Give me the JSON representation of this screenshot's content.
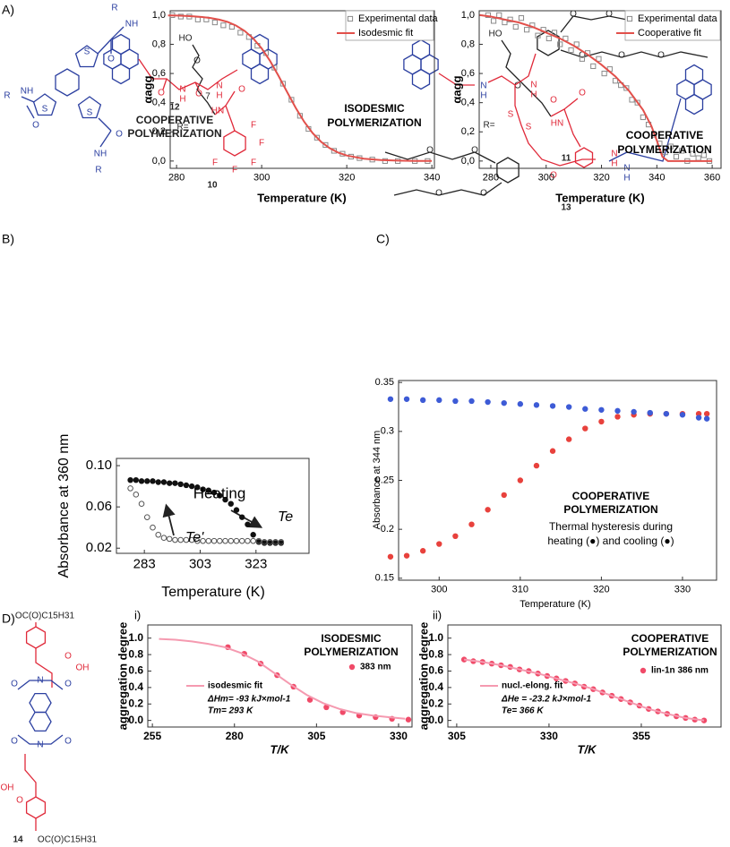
{
  "panels": {
    "a": "A)",
    "b": "B)",
    "c": "C)",
    "d": "D)"
  },
  "structures": {
    "mol_a": {
      "labels": [
        "R",
        "NH",
        "O",
        "S",
        "S",
        "S",
        "R",
        "NH",
        "O",
        "O",
        "NH",
        "R"
      ]
    },
    "mol_10": {
      "labels": [
        "HO",
        "O",
        "7",
        "HN",
        "O",
        "R=",
        "F",
        "F",
        "F",
        "F",
        "F",
        "10"
      ]
    },
    "mol_11": {
      "labels": [
        "HO",
        "O",
        "HN",
        "O",
        "R=",
        "11"
      ]
    },
    "mol_12": {
      "labels": [
        "O",
        "N",
        "H",
        "O",
        "N",
        "H",
        "12",
        "COOPERATIVE",
        "POLYMERIZATION"
      ]
    },
    "mol_13": {
      "labels": [
        "N",
        "H",
        "N",
        "H",
        "O",
        "S",
        "S",
        "O",
        "N",
        "H",
        "N",
        "H",
        "O",
        "O",
        "O",
        "O",
        "O",
        "O",
        "O",
        "O",
        "O",
        "O",
        "13"
      ]
    },
    "mol_14": {
      "labels": [
        "OC(O)C15H31",
        "OH",
        "O",
        "O",
        "N",
        "O",
        "O",
        "N",
        "O",
        "OH",
        "O",
        "14",
        "OC(O)C15H31"
      ]
    }
  },
  "chart_data": [
    {
      "type": "scatter",
      "x_label": "Temperature (K)",
      "y_label": "αagg",
      "legend": true,
      "xlim": [
        278.5,
        340.6
      ],
      "ylim": [
        -0.05,
        1.03
      ],
      "xticks": [
        280,
        300,
        320,
        340
      ],
      "yticks": [
        {
          "value": 0,
          "label": "0,0"
        },
        {
          "value": 0.2,
          "label": "0,2"
        },
        {
          "value": 0.4,
          "label": "0,4"
        },
        {
          "value": 0.6,
          "label": "0,6"
        },
        {
          "value": 0.8,
          "label": "0,8"
        },
        {
          "value": 1,
          "label": "1,0"
        }
      ],
      "annotations": [
        "ISODESMIC",
        "POLYMERIZATION"
      ],
      "series": [
        {
          "name": "Experimental data",
          "color": "#8a8a8a",
          "mode": "markers",
          "marker": "square-open",
          "x": [
            279,
            281,
            283,
            285,
            287,
            289,
            291,
            293,
            295,
            297,
            299,
            301,
            303,
            305,
            307,
            309,
            311,
            313,
            315,
            317,
            319,
            321,
            323,
            326,
            329,
            332,
            336,
            339
          ],
          "values": [
            1.0,
            0.99,
            0.99,
            0.97,
            0.97,
            0.95,
            0.93,
            0.92,
            0.88,
            0.85,
            0.79,
            0.74,
            0.64,
            0.53,
            0.42,
            0.31,
            0.22,
            0.16,
            0.11,
            0.07,
            0.05,
            0.03,
            0.02,
            0.01,
            0.0,
            0.0,
            0.0,
            0.0
          ]
        },
        {
          "name": "Isodesmic fit",
          "color": "#e2504b",
          "mode": "line",
          "x": [
            278,
            280,
            282,
            284,
            286,
            288,
            290,
            292,
            294,
            296,
            298,
            300,
            302,
            304,
            306,
            308,
            310,
            312,
            314,
            316,
            318,
            320,
            324,
            328,
            332,
            336,
            340
          ],
          "values": [
            0.998,
            0.997,
            0.995,
            0.992,
            0.987,
            0.98,
            0.969,
            0.953,
            0.928,
            0.892,
            0.841,
            0.772,
            0.685,
            0.582,
            0.472,
            0.365,
            0.269,
            0.191,
            0.131,
            0.088,
            0.058,
            0.038,
            0.016,
            0.007,
            0.003,
            0.001,
            0.0005
          ]
        }
      ]
    },
    {
      "type": "scatter",
      "x_label": "Temperature (K)",
      "y_label": "αagg",
      "legend": true,
      "xlim": [
        275.8,
        363.2
      ],
      "ylim": [
        -0.05,
        1.03
      ],
      "xticks": [
        280,
        300,
        320,
        340,
        360
      ],
      "yticks": [
        {
          "value": 0,
          "label": "0,0"
        },
        {
          "value": 0.2,
          "label": "0,2"
        },
        {
          "value": 0.4,
          "label": "0,4"
        },
        {
          "value": 0.6,
          "label": "0,6"
        },
        {
          "value": 0.8,
          "label": "0,8"
        },
        {
          "value": 1,
          "label": "1,0"
        }
      ],
      "annotations": [
        "COOPERATIVE",
        "POLYMERIZATION"
      ],
      "series": [
        {
          "name": "Experimental data",
          "color": "#8a8a8a",
          "mode": "markers",
          "marker": "square-open",
          "x": [
            279,
            281,
            283,
            285,
            287,
            289,
            291,
            293,
            295,
            297,
            299,
            301,
            303,
            305,
            307,
            309,
            311,
            313,
            315,
            317,
            319,
            321,
            323,
            325,
            327,
            329,
            331,
            333,
            335,
            337,
            339,
            341,
            343,
            345,
            347,
            349,
            351,
            353,
            355,
            357,
            359
          ],
          "values": [
            1.0,
            0.96,
            1.0,
            0.95,
            0.97,
            0.92,
            0.98,
            0.9,
            0.93,
            0.86,
            0.9,
            0.84,
            0.88,
            0.8,
            0.84,
            0.76,
            0.8,
            0.7,
            0.74,
            0.65,
            0.7,
            0.6,
            0.63,
            0.55,
            0.52,
            0.5,
            0.42,
            0.4,
            0.3,
            0.25,
            0.18,
            0.12,
            0.06,
            0.1,
            0.03,
            0.07,
            0.0,
            0.05,
            0.02,
            0.04,
            0.0
          ]
        },
        {
          "name": "Cooperative fit",
          "color": "#e2504b",
          "mode": "line",
          "x": [
            276,
            280,
            285,
            290,
            295,
            300,
            305,
            310,
            315,
            320,
            325,
            330,
            335,
            338,
            340,
            342,
            344,
            350,
            360
          ],
          "values": [
            1.0,
            0.99,
            0.97,
            0.95,
            0.92,
            0.88,
            0.84,
            0.79,
            0.73,
            0.66,
            0.58,
            0.48,
            0.35,
            0.24,
            0.14,
            0.03,
            0.0,
            0.0,
            0.0
          ]
        }
      ]
    },
    {
      "type": "scatter",
      "x_label": "Temperature (K)",
      "y_label": "Absorbance at 360 nm",
      "legend": false,
      "xlim": [
        273,
        342
      ],
      "ylim": [
        0.015,
        0.107
      ],
      "xticks": [
        283,
        303,
        323
      ],
      "yticks": [
        0.02,
        0.06,
        {
          "value": 0.1,
          "label": "0.10"
        }
      ],
      "annotations": [
        "Te'",
        "Te"
      ],
      "series": [
        {
          "name": "Heating",
          "color": "#111111",
          "mode": "markers",
          "marker": "circle",
          "x": [
            278,
            280,
            282,
            284,
            286,
            288,
            290,
            292,
            294,
            296,
            298,
            300,
            302,
            304,
            306,
            308,
            310,
            312,
            314,
            316,
            318,
            320,
            322,
            324,
            326,
            328,
            330,
            332
          ],
          "values": [
            0.086,
            0.086,
            0.085,
            0.085,
            0.085,
            0.084,
            0.084,
            0.083,
            0.083,
            0.082,
            0.081,
            0.08,
            0.079,
            0.077,
            0.076,
            0.074,
            0.071,
            0.067,
            0.063,
            0.057,
            0.05,
            0.043,
            0.033,
            0.026,
            0.025,
            0.025,
            0.025,
            0.025
          ]
        },
        {
          "color": "#555555",
          "mode": "markers",
          "marker": "circle-open",
          "x": [
            278,
            280,
            282,
            284,
            286,
            288,
            290,
            292,
            294,
            296,
            298,
            300,
            302,
            304,
            306,
            308,
            310,
            312,
            314,
            316,
            318,
            320,
            322,
            324,
            326,
            328,
            330,
            332
          ],
          "values": [
            0.078,
            0.072,
            0.063,
            0.05,
            0.04,
            0.033,
            0.03,
            0.029,
            0.028,
            0.028,
            0.028,
            0.028,
            0.027,
            0.027,
            0.027,
            0.027,
            0.027,
            0.027,
            0.027,
            0.027,
            0.027,
            0.027,
            0.027,
            0.027,
            0.026,
            0.026,
            0.026,
            0.026
          ]
        }
      ]
    },
    {
      "type": "scatter",
      "x_label": "Temperature (K)",
      "y_label": "Absorbance at 344 nm",
      "legend": false,
      "xlim": [
        295,
        334.2
      ],
      "ylim": [
        0.148,
        0.352
      ],
      "xticks": [
        300,
        310,
        320,
        330
      ],
      "yticks": [
        0.15,
        0.2,
        0.25,
        0.3,
        0.35
      ],
      "annotations": [
        "COOPERATIVE",
        "POLYMERIZATION",
        "Thermal hysteresis during",
        "heating (●) and cooling (●)"
      ],
      "series": [
        {
          "color": "#e8413c",
          "mode": "markers",
          "marker": "circle",
          "x": [
            294,
            296,
            298,
            300,
            302,
            304,
            306,
            308,
            310,
            312,
            314,
            316,
            318,
            320,
            322,
            324,
            326,
            328,
            330,
            332,
            333
          ],
          "values": [
            0.172,
            0.173,
            0.178,
            0.185,
            0.193,
            0.205,
            0.22,
            0.235,
            0.25,
            0.265,
            0.28,
            0.292,
            0.303,
            0.31,
            0.315,
            0.317,
            0.318,
            0.318,
            0.318,
            0.318,
            0.318
          ]
        },
        {
          "color": "#3d5bd6",
          "mode": "markers",
          "marker": "circle",
          "x": [
            294,
            296,
            298,
            300,
            302,
            304,
            306,
            308,
            310,
            312,
            314,
            316,
            318,
            320,
            322,
            324,
            326,
            328,
            330,
            332,
            333
          ],
          "values": [
            0.333,
            0.333,
            0.332,
            0.332,
            0.331,
            0.331,
            0.33,
            0.329,
            0.328,
            0.327,
            0.326,
            0.325,
            0.323,
            0.322,
            0.321,
            0.32,
            0.319,
            0.318,
            0.317,
            0.314,
            0.313
          ]
        }
      ]
    },
    {
      "type": "scatter",
      "panel": "i)",
      "x_label": "T/K",
      "y_label": "aggregation degree",
      "legend": true,
      "xlim": [
        253.6,
        334.1
      ],
      "ylim": [
        -0.08,
        1.16
      ],
      "xticks": [
        255,
        280,
        305,
        330
      ],
      "yticks": [
        {
          "value": 0,
          "label": "0.0"
        },
        0.2,
        0.4,
        0.6,
        0.8,
        {
          "value": 1,
          "label": "1.0"
        }
      ],
      "annotations": [
        "ISODESMIC",
        "POLYMERIZATION",
        "ΔHm= -93 kJ×mol-1",
        "Tm= 293 K"
      ],
      "series": [
        {
          "name": "383 nm",
          "color": "#f04a68",
          "mode": "markers",
          "marker": "circle",
          "x": [
            278,
            283,
            288,
            293,
            298,
            303,
            308,
            313,
            318,
            323,
            328,
            333
          ],
          "values": [
            0.89,
            0.81,
            0.69,
            0.55,
            0.41,
            0.25,
            0.16,
            0.1,
            0.06,
            0.04,
            0.02,
            0.01
          ]
        },
        {
          "name": "isodesmic fit",
          "color": "#f59ab0",
          "mode": "line",
          "x": [
            257,
            262,
            267,
            272,
            277,
            282,
            287,
            292,
            297,
            302,
            307,
            312,
            317,
            322,
            327,
            332
          ],
          "values": [
            0.99,
            0.98,
            0.96,
            0.93,
            0.89,
            0.82,
            0.72,
            0.58,
            0.44,
            0.31,
            0.21,
            0.14,
            0.09,
            0.06,
            0.04,
            0.02
          ]
        }
      ]
    },
    {
      "type": "scatter",
      "panel": "ii)",
      "x_label": "T/K",
      "y_label": "aggregation degree",
      "legend": true,
      "xlim": [
        302.6,
        376.6
      ],
      "ylim": [
        -0.08,
        1.16
      ],
      "xticks": [
        305,
        330,
        355
      ],
      "yticks": [
        {
          "value": 0,
          "label": "0.0"
        },
        0.2,
        0.4,
        0.6,
        0.8,
        {
          "value": 1,
          "label": "1.0"
        }
      ],
      "annotations": [
        "COOPERATIVE",
        "POLYMERIZATION",
        "ΔHe = -23.2 kJ×mol-1",
        "Te= 366 K"
      ],
      "series": [
        {
          "name": "lin-1n 386 nm",
          "color": "#f04a68",
          "mode": "markers",
          "marker": "circle",
          "x": [
            307,
            309.5,
            312,
            314.5,
            317,
            319.5,
            322,
            324.5,
            327,
            329.5,
            332,
            334.5,
            337,
            339.5,
            342,
            344.5,
            347,
            349.5,
            352,
            354.5,
            357,
            359.5,
            362,
            364.5,
            367,
            369.5,
            372
          ],
          "values": [
            0.74,
            0.72,
            0.71,
            0.69,
            0.67,
            0.65,
            0.62,
            0.6,
            0.57,
            0.54,
            0.51,
            0.48,
            0.45,
            0.41,
            0.38,
            0.34,
            0.3,
            0.26,
            0.22,
            0.18,
            0.14,
            0.11,
            0.08,
            0.05,
            0.03,
            0.01,
            0.0
          ]
        },
        {
          "name": "nucl.-elong. fit",
          "color": "#f59ab0",
          "mode": "line",
          "x": [
            307,
            312,
            317,
            322,
            327,
            332,
            337,
            342,
            347,
            352,
            357,
            362,
            367,
            372
          ],
          "values": [
            0.74,
            0.71,
            0.67,
            0.62,
            0.57,
            0.51,
            0.45,
            0.38,
            0.3,
            0.22,
            0.14,
            0.08,
            0.03,
            0.0
          ]
        }
      ]
    }
  ]
}
